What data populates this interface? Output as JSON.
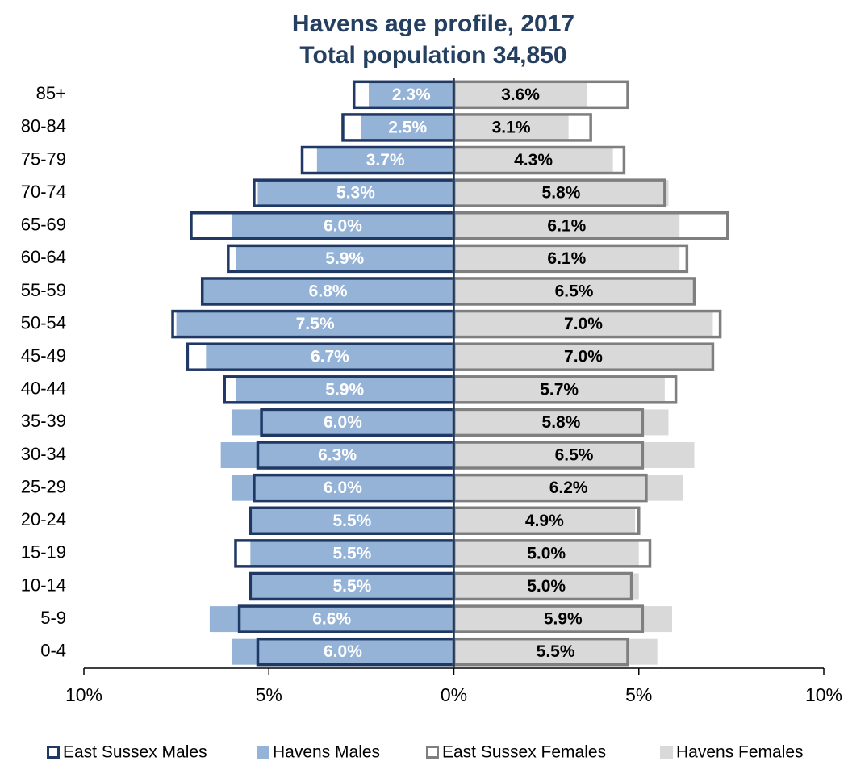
{
  "chart_data": {
    "type": "bar",
    "orientation": "horizontal",
    "title": "Havens age profile, 2017",
    "subtitle": "Total population 34,850",
    "categories": [
      "85+",
      "80-84",
      "75-79",
      "70-74",
      "65-69",
      "60-64",
      "55-59",
      "50-54",
      "45-49",
      "40-44",
      "35-39",
      "30-34",
      "25-29",
      "20-24",
      "15-19",
      "10-14",
      "5-9",
      "0-4"
    ],
    "series": [
      {
        "name": "East Sussex Males",
        "color": "#1f3864",
        "style": "outline",
        "side": "left",
        "values": [
          2.7,
          3.0,
          4.1,
          5.4,
          7.1,
          6.1,
          6.8,
          7.6,
          7.2,
          6.2,
          5.2,
          5.3,
          5.4,
          5.5,
          5.9,
          5.5,
          5.8,
          5.3
        ]
      },
      {
        "name": "Havens Males",
        "color": "#95b3d7",
        "style": "fill",
        "side": "left",
        "label_color": "#ffffff",
        "values": [
          2.3,
          2.5,
          3.7,
          5.3,
          6.0,
          5.9,
          6.8,
          7.5,
          6.7,
          5.9,
          6.0,
          6.3,
          6.0,
          5.5,
          5.5,
          5.5,
          6.6,
          6.0
        ],
        "value_labels": [
          "2.3%",
          "2.5%",
          "3.7%",
          "5.3%",
          "6.0%",
          "5.9%",
          "6.8%",
          "7.5%",
          "6.7%",
          "5.9%",
          "6.0%",
          "6.3%",
          "6.0%",
          "5.5%",
          "5.5%",
          "5.5%",
          "6.6%",
          "6.0%"
        ]
      },
      {
        "name": "East Sussex Females",
        "color": "#7f7f7f",
        "style": "outline",
        "side": "right",
        "values": [
          4.7,
          3.7,
          4.6,
          5.7,
          7.4,
          6.3,
          6.5,
          7.2,
          7.0,
          6.0,
          5.1,
          5.1,
          5.2,
          5.0,
          5.3,
          4.8,
          5.1,
          4.7
        ]
      },
      {
        "name": "Havens Females",
        "color": "#d9d9d9",
        "style": "fill",
        "side": "right",
        "label_color": "#000000",
        "values": [
          3.6,
          3.1,
          4.3,
          5.8,
          6.1,
          6.1,
          6.5,
          7.0,
          7.0,
          5.7,
          5.8,
          6.5,
          6.2,
          4.9,
          5.0,
          5.0,
          5.9,
          5.5
        ],
        "value_labels": [
          "3.6%",
          "3.1%",
          "4.3%",
          "5.8%",
          "6.1%",
          "6.1%",
          "6.5%",
          "7.0%",
          "7.0%",
          "5.7%",
          "5.8%",
          "6.5%",
          "6.2%",
          "4.9%",
          "5.0%",
          "5.0%",
          "5.9%",
          "5.5%"
        ]
      }
    ],
    "xlim": [
      -10,
      10
    ],
    "xticks": [
      {
        "value": -10,
        "label": "10%"
      },
      {
        "value": -5,
        "label": "5%"
      },
      {
        "value": 0,
        "label": "0%"
      },
      {
        "value": 5,
        "label": "5%"
      },
      {
        "value": 10,
        "label": "10%"
      }
    ],
    "legend": "bottom"
  }
}
